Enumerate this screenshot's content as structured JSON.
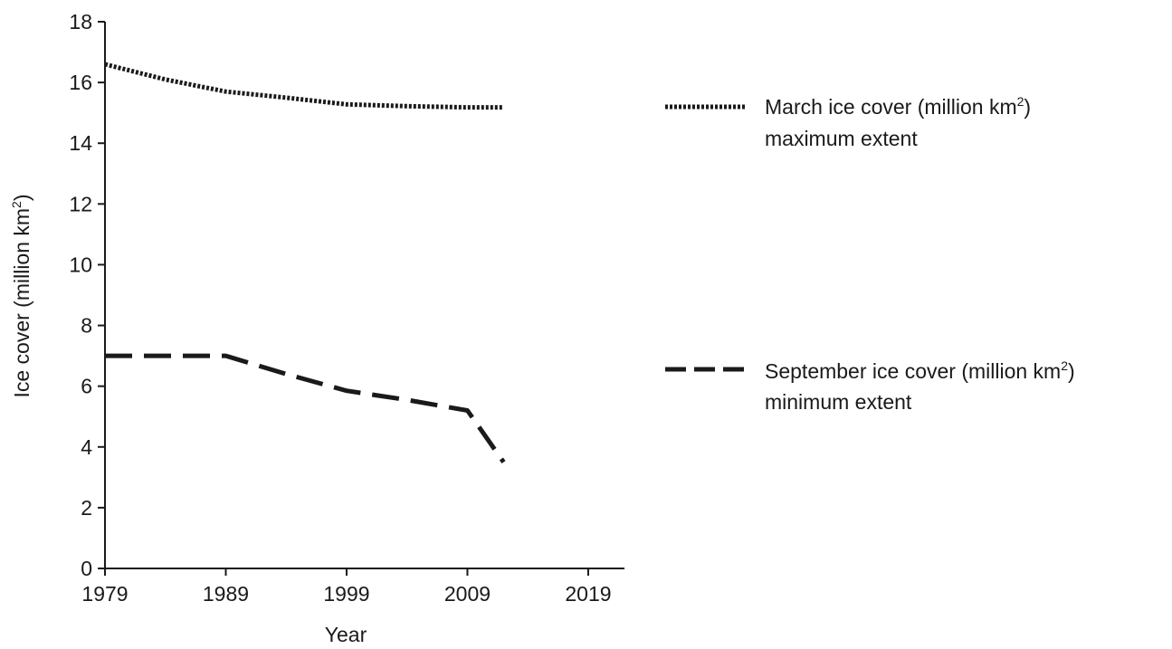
{
  "chart_data": {
    "type": "line",
    "title": "",
    "xlabel": "Year",
    "ylabel": {
      "main": "Ice cover (million km",
      "sup": "2",
      "end": ")"
    },
    "xlim": [
      1979,
      2022
    ],
    "ylim": [
      0,
      18
    ],
    "xticks": [
      "1979",
      "1989",
      "1999",
      "2009",
      "2019"
    ],
    "yticks": [
      "0",
      "2",
      "4",
      "6",
      "8",
      "10",
      "12",
      "14",
      "16",
      "18"
    ],
    "grid": false,
    "legend_position": "right",
    "series": [
      {
        "key": "march",
        "name_line1": "March ice cover (million km",
        "name_sup": "2",
        "name_end": ")",
        "name_line2": "maximum extent",
        "style": "dotted",
        "x": [
          1979,
          1984,
          1989,
          1994,
          1999,
          2004,
          2009,
          2012
        ],
        "y": [
          16.6,
          16.1,
          15.7,
          15.5,
          15.28,
          15.22,
          15.18,
          15.18
        ]
      },
      {
        "key": "september",
        "name_line1": "September ice cover (million km",
        "name_sup": "2",
        "name_end": ")",
        "name_line2": "minimum extent",
        "style": "dashed",
        "x": [
          1979,
          1989,
          1994,
          1999,
          2004,
          2009,
          2012
        ],
        "y": [
          7.0,
          7.0,
          6.4,
          5.85,
          5.55,
          5.2,
          3.5
        ]
      }
    ]
  }
}
